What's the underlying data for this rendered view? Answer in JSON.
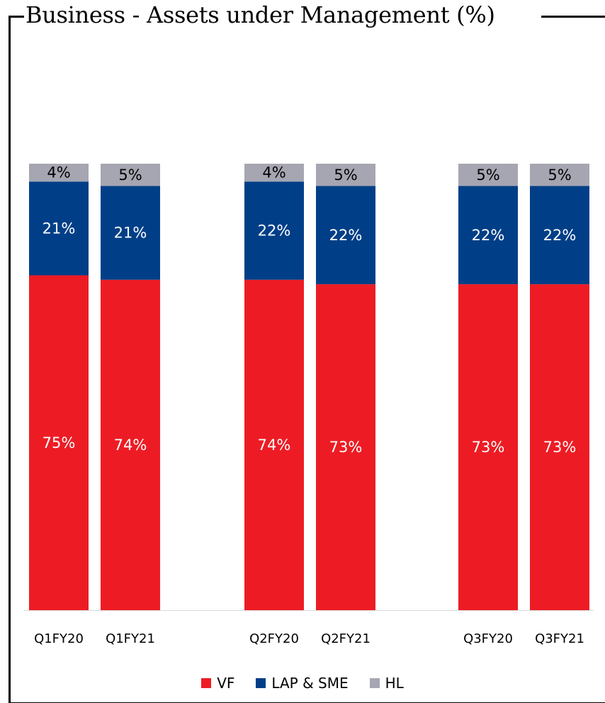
{
  "title": "Business - Assets under Management (%)",
  "colors": {
    "VF": "#ED1C24",
    "LAP & SME": "#003F87",
    "HL": "#A6A6B2"
  },
  "chart_data": {
    "type": "bar",
    "stacked": true,
    "title": "Business - Assets under Management (%)",
    "categories": [
      "Q1FY20",
      "Q1FY21",
      "Q2FY20",
      "Q2FY21",
      "Q3FY20",
      "Q3FY21"
    ],
    "series": [
      {
        "name": "VF",
        "values": [
          75,
          74,
          74,
          73,
          73,
          73
        ],
        "labels": [
          "75%",
          "74%",
          "74%",
          "73%",
          "73%",
          "73%"
        ]
      },
      {
        "name": "LAP & SME",
        "values": [
          21,
          21,
          22,
          22,
          22,
          22
        ],
        "labels": [
          "21%",
          "21%",
          "22%",
          "22%",
          "22%",
          "22%"
        ]
      },
      {
        "name": "HL",
        "values": [
          4,
          5,
          4,
          5,
          5,
          5
        ],
        "labels": [
          "4%",
          "5%",
          "4%",
          "5%",
          "5%",
          "5%"
        ]
      }
    ],
    "xlabel": "",
    "ylabel": "",
    "ylim": [
      0,
      100
    ],
    "grid": false,
    "legend_position": "bottom"
  },
  "legend": [
    {
      "label": "VF",
      "color": "#ED1C24"
    },
    {
      "label": "LAP & SME",
      "color": "#003F87"
    },
    {
      "label": "HL",
      "color": "#A6A6B2"
    }
  ]
}
